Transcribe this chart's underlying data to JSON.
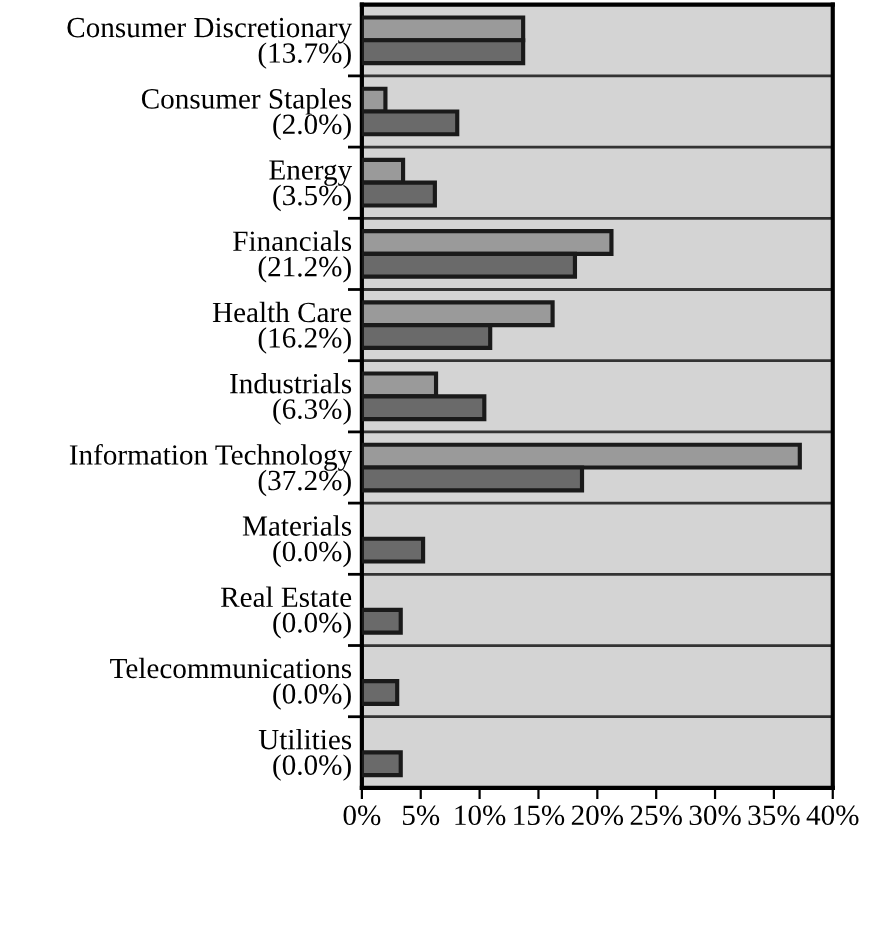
{
  "chart_data": {
    "type": "bar",
    "orientation": "horizontal",
    "categories": [
      "Consumer Discretionary\n(13.7%)",
      "Consumer Staples\n(2.0%)",
      "Energy\n(3.5%)",
      "Financials\n(21.2%)",
      "Health Care\n(16.2%)",
      "Industrials\n(6.3%)",
      "Information Technology\n(37.2%)",
      "Materials\n(0.0%)",
      "Real Estate\n(0.0%)",
      "Telecommunications\n(0.0%)",
      "Utilities\n(0.0%)"
    ],
    "series": [
      {
        "color": "#9a9a9a",
        "values": [
          13.7,
          2.0,
          3.5,
          21.2,
          16.2,
          6.3,
          37.2,
          0.0,
          0.0,
          0.0,
          0.0
        ]
      },
      {
        "color": "#6a6a6a",
        "values": [
          13.7,
          8.1,
          6.2,
          18.1,
          10.9,
          10.4,
          18.7,
          5.2,
          3.3,
          3.0,
          3.3
        ]
      }
    ],
    "xlim": [
      0,
      40
    ],
    "xticks": [
      {
        "value": 0,
        "label": "0%"
      },
      {
        "value": 5,
        "label": "5%"
      },
      {
        "value": 10,
        "label": "10%"
      },
      {
        "value": 15,
        "label": "15%"
      },
      {
        "value": 20,
        "label": "20%"
      },
      {
        "value": 25,
        "label": "25%"
      },
      {
        "value": 30,
        "label": "30%"
      },
      {
        "value": 35,
        "label": "35%"
      },
      {
        "value": 40,
        "label": "40%"
      }
    ],
    "grid": "y"
  }
}
